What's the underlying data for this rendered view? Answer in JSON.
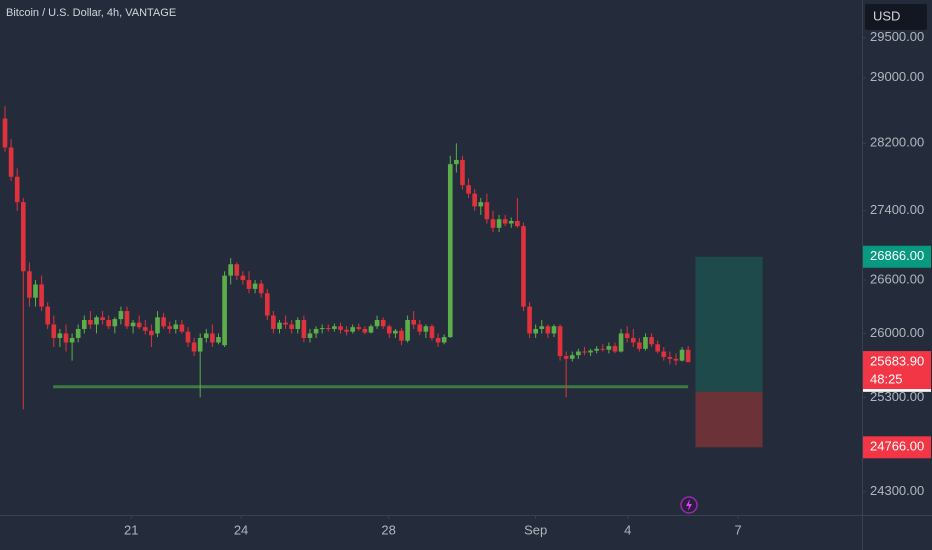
{
  "chart_data": {
    "type": "candlestick",
    "title": "Bitcoin / U.S. Dollar, 4h, VANTAGE",
    "currency": "USD",
    "log_scale": true,
    "up_color": "#5cae4a",
    "down_color": "#e0323c",
    "ylim": [
      24060,
      29980
    ],
    "yticks": [
      {
        "value": 24300,
        "label": "24300.00"
      },
      {
        "value": 25300,
        "label": "25300.00"
      },
      {
        "value": 26000,
        "label": "26000.00"
      },
      {
        "value": 26600,
        "label": "26600.00"
      },
      {
        "value": 27400,
        "label": "27400.00"
      },
      {
        "value": 28200,
        "label": "28200.00"
      },
      {
        "value": 29000,
        "label": "29000.00"
      },
      {
        "value": 29500,
        "label": "29500.00"
      }
    ],
    "xlim": [
      -0.82,
      140.5
    ],
    "xticks": [
      {
        "value": 20.7,
        "label": "21"
      },
      {
        "value": 38.7,
        "label": "24"
      },
      {
        "value": 62.9,
        "label": "28"
      },
      {
        "value": 87,
        "label": "Sep"
      },
      {
        "value": 102.1,
        "label": "4"
      },
      {
        "value": 120.2,
        "label": "7"
      }
    ],
    "ohlc": [
      [
        28500,
        28650,
        28100,
        28150
      ],
      [
        28150,
        28250,
        27750,
        27800
      ],
      [
        27800,
        27900,
        27400,
        27500
      ],
      [
        27500,
        27550,
        25170,
        26700
      ],
      [
        26700,
        26800,
        26300,
        26400
      ],
      [
        26400,
        26600,
        26300,
        26550
      ],
      [
        26550,
        26650,
        26250,
        26300
      ],
      [
        26300,
        26350,
        26050,
        26100
      ],
      [
        26100,
        26200,
        25850,
        25950
      ],
      [
        25950,
        26050,
        25850,
        26000
      ],
      [
        26000,
        26100,
        25800,
        25900
      ],
      [
        25900,
        26000,
        25700,
        25950
      ],
      [
        25950,
        26100,
        25900,
        26050
      ],
      [
        26050,
        26200,
        26000,
        26150
      ],
      [
        26150,
        26250,
        26050,
        26100
      ],
      [
        26100,
        26200,
        26000,
        26180
      ],
      [
        26180,
        26250,
        26100,
        26150
      ],
      [
        26150,
        26200,
        26050,
        26080
      ],
      [
        26080,
        26180,
        26000,
        26160
      ],
      [
        26160,
        26300,
        26100,
        26250
      ],
      [
        26250,
        26300,
        26050,
        26080
      ],
      [
        26080,
        26150,
        26000,
        26120
      ],
      [
        26120,
        26200,
        26050,
        26070
      ],
      [
        26070,
        26150,
        25990,
        26030
      ],
      [
        26030,
        26100,
        25850,
        25980
      ],
      [
        26000,
        26250,
        25960,
        26180
      ],
      [
        26180,
        26230,
        26050,
        26080
      ],
      [
        26080,
        26130,
        26000,
        26050
      ],
      [
        26050,
        26150,
        26000,
        26100
      ],
      [
        26100,
        26150,
        26000,
        26020
      ],
      [
        26020,
        26070,
        25850,
        25900
      ],
      [
        25900,
        25950,
        25750,
        25800
      ],
      [
        25800,
        26000,
        25300,
        25950
      ],
      [
        25950,
        26050,
        25900,
        26000
      ],
      [
        26000,
        26100,
        25850,
        25900
      ],
      [
        25900,
        26000,
        25880,
        25960
      ],
      [
        25870,
        26700,
        25850,
        26650
      ],
      [
        26650,
        26850,
        26550,
        26780
      ],
      [
        26780,
        26800,
        26600,
        26650
      ],
      [
        26650,
        26700,
        26550,
        26600
      ],
      [
        26600,
        26700,
        26450,
        26500
      ],
      [
        26500,
        26600,
        26450,
        26560
      ],
      [
        26560,
        26600,
        26400,
        26450
      ],
      [
        26450,
        26500,
        26150,
        26200
      ],
      [
        26200,
        26250,
        26000,
        26050
      ],
      [
        26050,
        26150,
        26000,
        26120
      ],
      [
        26120,
        26200,
        26050,
        26100
      ],
      [
        26100,
        26150,
        26000,
        26050
      ],
      [
        26050,
        26180,
        26000,
        26150
      ],
      [
        26150,
        26200,
        25900,
        25950
      ],
      [
        25950,
        26050,
        25900,
        26000
      ],
      [
        26000,
        26080,
        25950,
        26050
      ],
      [
        26050,
        26100,
        26000,
        26060
      ],
      [
        26060,
        26100,
        26020,
        26050
      ],
      [
        26050,
        26110,
        26020,
        26080
      ],
      [
        26080,
        26120,
        26000,
        26040
      ],
      [
        26040,
        26080,
        25980,
        26020
      ],
      [
        26020,
        26100,
        26000,
        26070
      ],
      [
        26070,
        26110,
        26030,
        26050
      ],
      [
        26050,
        26080,
        25990,
        26010
      ],
      [
        26010,
        26100,
        26000,
        26080
      ],
      [
        26080,
        26200,
        26050,
        26150
      ],
      [
        26150,
        26180,
        26050,
        26080
      ],
      [
        26080,
        26100,
        25950,
        26000
      ],
      [
        26000,
        26050,
        25950,
        26030
      ],
      [
        26030,
        26060,
        25870,
        25920
      ],
      [
        25920,
        26200,
        25900,
        26150
      ],
      [
        26150,
        26250,
        26050,
        26100
      ],
      [
        26100,
        26150,
        25980,
        26020
      ],
      [
        26020,
        26100,
        25950,
        26080
      ],
      [
        26080,
        26100,
        25920,
        25950
      ],
      [
        25950,
        26000,
        25850,
        25900
      ],
      [
        25900,
        25990,
        25880,
        25960
      ],
      [
        25960,
        28050,
        25950,
        27950
      ],
      [
        27950,
        28200,
        27850,
        28000
      ],
      [
        28000,
        28050,
        27650,
        27700
      ],
      [
        27700,
        27780,
        27550,
        27600
      ],
      [
        27600,
        27650,
        27400,
        27450
      ],
      [
        27450,
        27550,
        27350,
        27500
      ],
      [
        27500,
        27600,
        27250,
        27300
      ],
      [
        27300,
        27400,
        27150,
        27200
      ],
      [
        27200,
        27350,
        27150,
        27300
      ],
      [
        27300,
        27350,
        27220,
        27250
      ],
      [
        27250,
        27320,
        27200,
        27280
      ],
      [
        27280,
        27550,
        27200,
        27220
      ],
      [
        27220,
        27260,
        26250,
        26300
      ],
      [
        26300,
        26350,
        25950,
        26000
      ],
      [
        26000,
        26100,
        25950,
        26050
      ],
      [
        26050,
        26150,
        26000,
        26080
      ],
      [
        26080,
        26100,
        25950,
        26000
      ],
      [
        26000,
        26100,
        25960,
        26080
      ],
      [
        26080,
        26100,
        25700,
        25750
      ],
      [
        25750,
        25800,
        25300,
        25720
      ],
      [
        25720,
        25800,
        25690,
        25760
      ],
      [
        25760,
        25830,
        25720,
        25800
      ],
      [
        25800,
        25850,
        25760,
        25790
      ],
      [
        25790,
        25830,
        25750,
        25810
      ],
      [
        25810,
        25860,
        25780,
        25830
      ],
      [
        25830,
        25880,
        25800,
        25820
      ],
      [
        25820,
        25900,
        25780,
        25860
      ],
      [
        25860,
        25900,
        25780,
        25800
      ],
      [
        25800,
        26050,
        25790,
        26000
      ],
      [
        26000,
        26080,
        25900,
        25950
      ],
      [
        25950,
        26050,
        25850,
        25900
      ],
      [
        25900,
        25950,
        25800,
        25830
      ],
      [
        25830,
        26000,
        25810,
        25960
      ],
      [
        25960,
        26000,
        25850,
        25880
      ],
      [
        25880,
        25920,
        25780,
        25800
      ],
      [
        25800,
        25850,
        25700,
        25740
      ],
      [
        25740,
        25800,
        25660,
        25720
      ],
      [
        25720,
        25780,
        25650,
        25700
      ],
      [
        25700,
        25850,
        25690,
        25820
      ],
      [
        25820,
        25860,
        25680,
        25683.9
      ]
    ],
    "last_price": {
      "value": 25683.9,
      "label": "25683.90"
    },
    "countdown": "48:25",
    "support": {
      "value": 25415,
      "start": 7.9,
      "end": 112
    },
    "position": {
      "entry": 25360,
      "target": {
        "value": 26866,
        "label": "26866.00"
      },
      "stop": {
        "value": 24766,
        "label": "24766.00"
      },
      "start": 113.2,
      "end": 124.2
    }
  }
}
